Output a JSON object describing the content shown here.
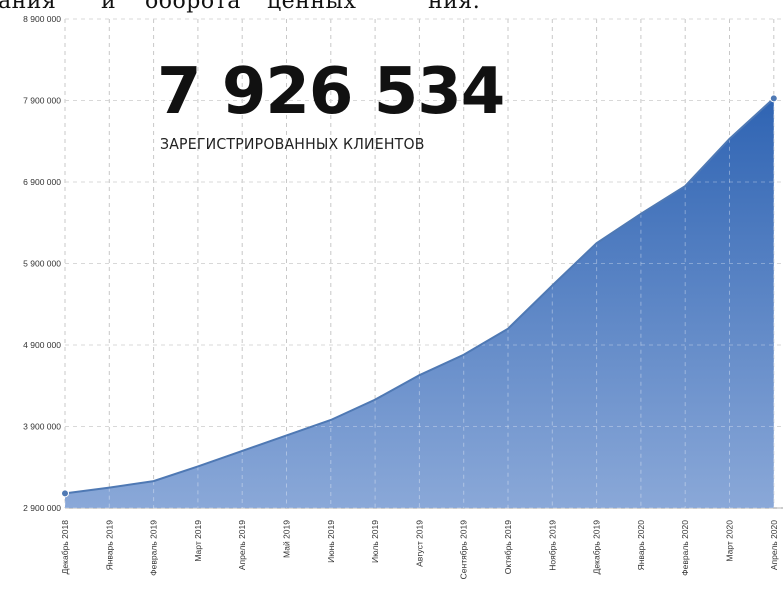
{
  "cropped_heading": {
    "part1": "ания",
    "part2": "и",
    "part3": "оборота",
    "part4": "ценных",
    "part5": "ния."
  },
  "headline": {
    "count": "7 926 534",
    "caption": "ЗАРЕГИСТРИРОВАННЫХ КЛИЕНТОВ"
  },
  "colors": {
    "area_top": "#2f64b3",
    "area_bottom": "#8aa8d8",
    "line": "#4f79b4",
    "grid": "#c8c8c8"
  },
  "chart_data": {
    "type": "area",
    "title": "",
    "xlabel": "",
    "ylabel": "",
    "ylim": [
      2900000,
      8900000
    ],
    "y_ticks": [
      2900000,
      3900000,
      4900000,
      5900000,
      6900000,
      7900000,
      8900000
    ],
    "y_tick_labels": [
      "2 900 000",
      "3 900 000",
      "4 900 000",
      "5 900 000",
      "6 900 000",
      "7 900 000",
      "8 900 000"
    ],
    "grid": true,
    "categories": [
      "Декабрь 2018",
      "Январь 2019",
      "Февраль 2019",
      "Март 2019",
      "Апрель 2019",
      "Май 2019",
      "Июнь 2019",
      "Июль 2019",
      "Август 2019",
      "Сентябрь 2019",
      "Октябрь 2019",
      "Ноябрь 2019",
      "Декабрь 2019",
      "Январь 2020",
      "Февраль 2020",
      "Март 2020",
      "Апрель 2020"
    ],
    "values": [
      3080000,
      3150000,
      3230000,
      3410000,
      3600000,
      3790000,
      3980000,
      4230000,
      4530000,
      4780000,
      5100000,
      5630000,
      6150000,
      6510000,
      6850000,
      7430000,
      7926534
    ]
  }
}
